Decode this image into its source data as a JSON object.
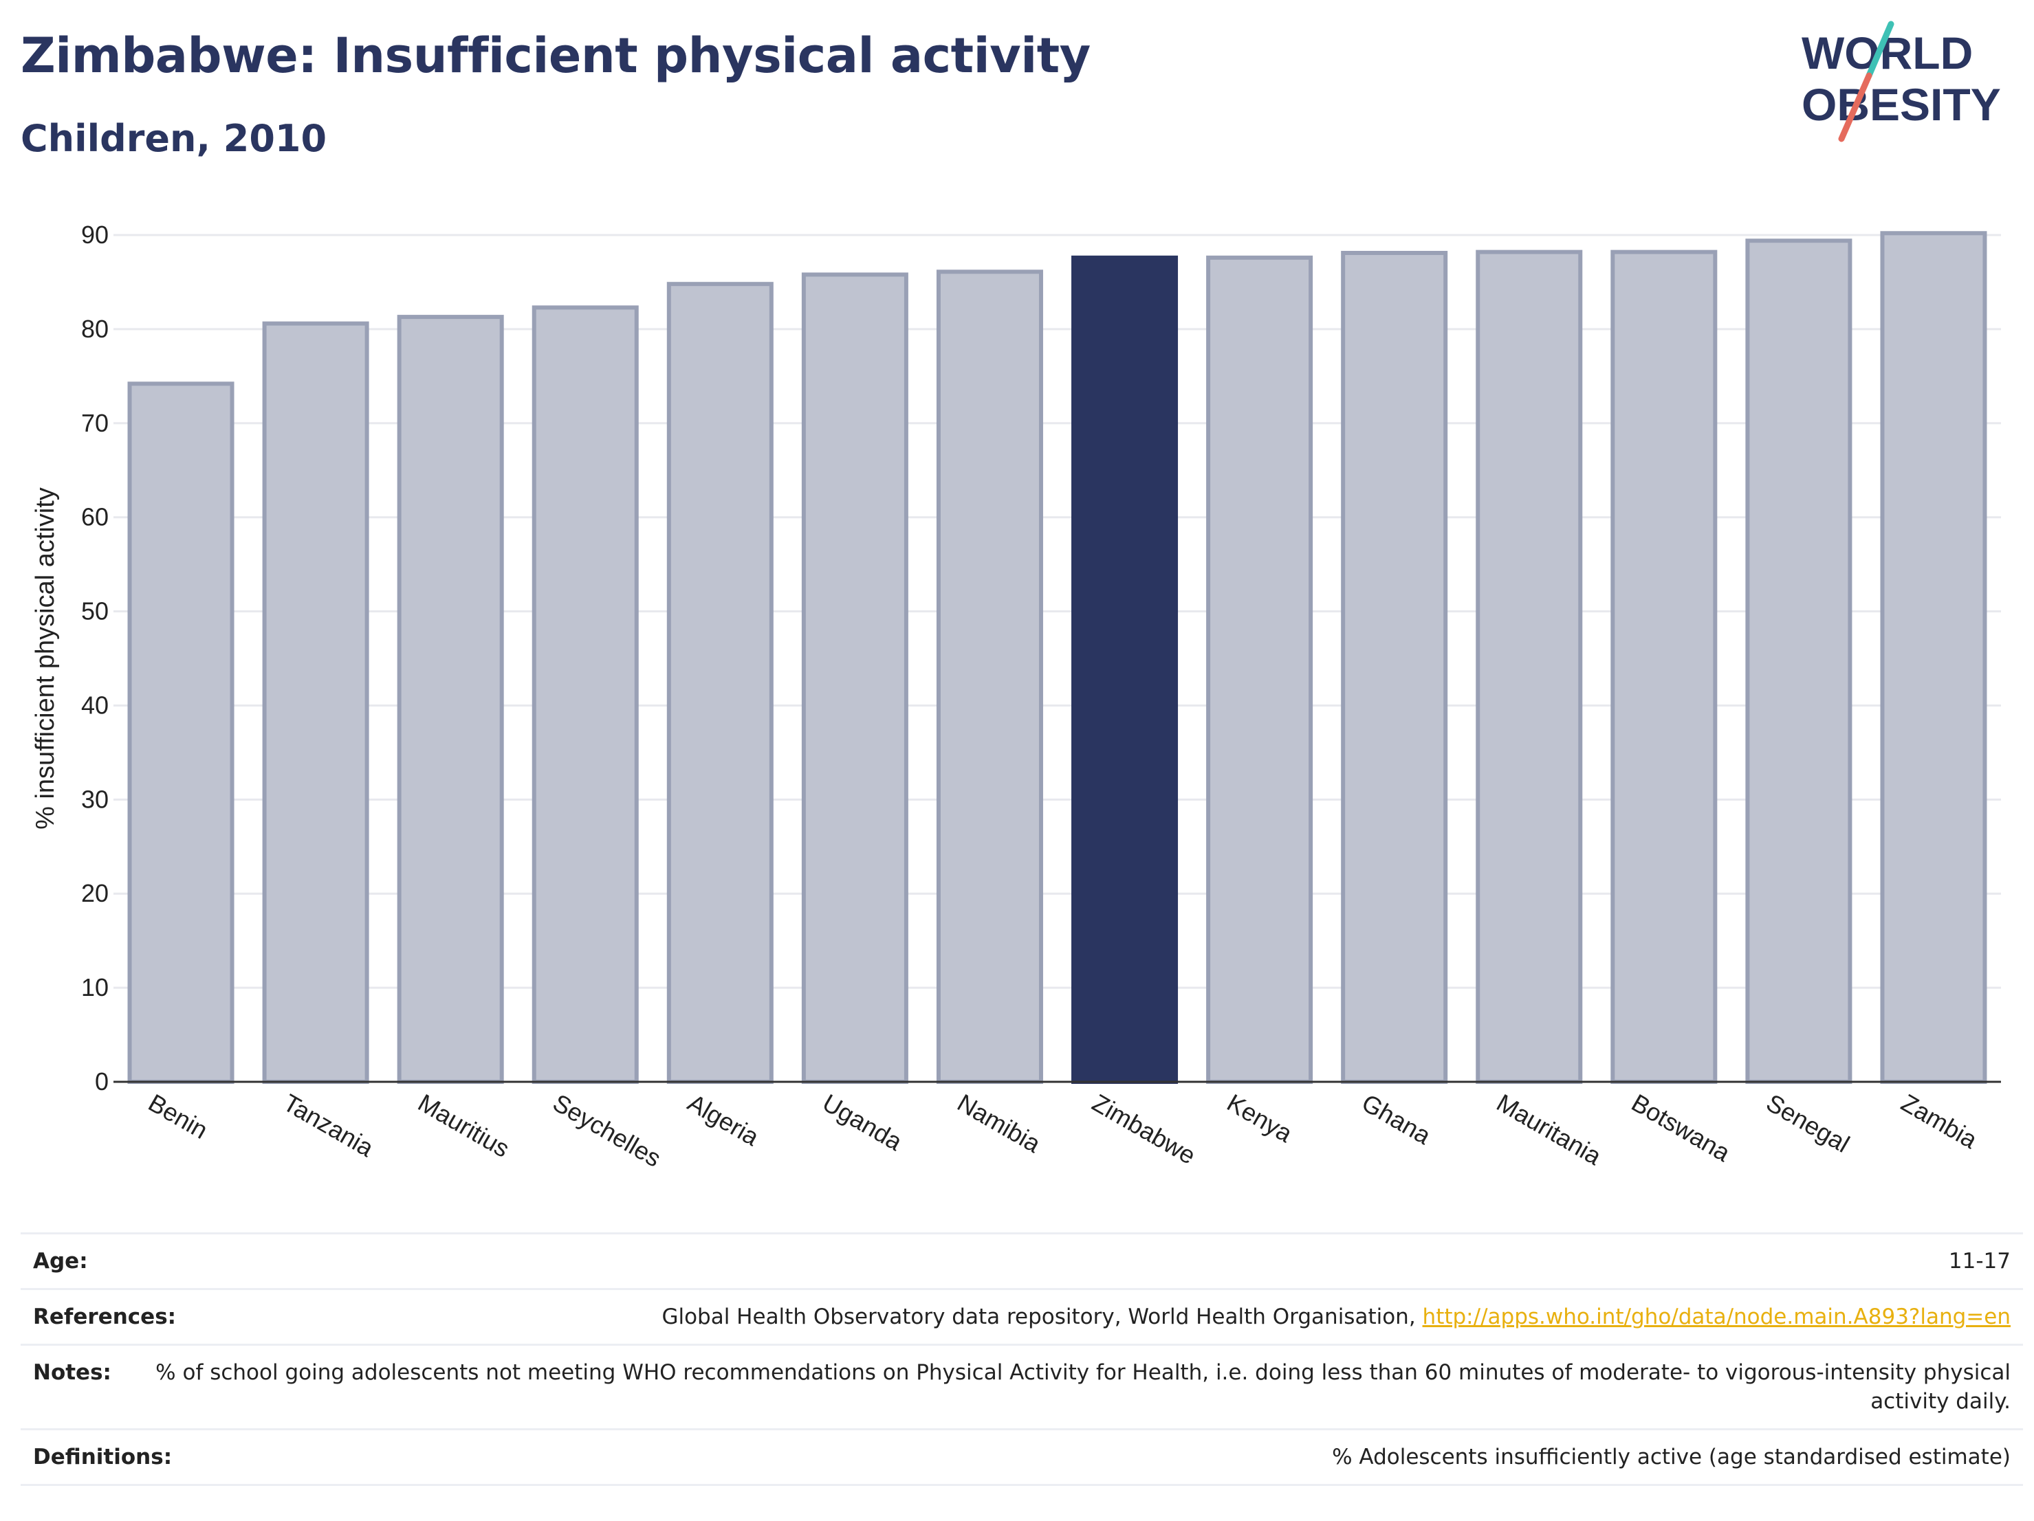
{
  "header": {
    "title": "Zimbabwe: Insufficient physical activity",
    "subtitle": "Children, 2010"
  },
  "logo": {
    "line1": "WORLD",
    "line2": "OBESITY",
    "text_color": "#2a3560",
    "slash_top_color": "#3ec1b5",
    "slash_bottom_color": "#e56b5d"
  },
  "colors": {
    "highlight_bar": "#2a3560",
    "other_bar_fill": "#bfc3d0",
    "other_bar_stroke": "#99a0b5",
    "grid": "#e8e9ee",
    "axis": "#333333"
  },
  "chart_data": {
    "type": "bar",
    "categories": [
      "Benin",
      "Tanzania",
      "Mauritius",
      "Seychelles",
      "Algeria",
      "Uganda",
      "Namibia",
      "Zimbabwe",
      "Kenya",
      "Ghana",
      "Mauritania",
      "Botswana",
      "Senegal",
      "Zambia"
    ],
    "values": [
      74.2,
      80.6,
      81.3,
      82.3,
      84.8,
      85.8,
      86.1,
      87.6,
      87.6,
      88.1,
      88.2,
      88.2,
      89.4,
      90.2
    ],
    "highlight": "Zimbabwe",
    "ylabel": "% insufficient physical activity",
    "xlabel": "",
    "ylim": [
      0,
      90
    ],
    "yticks": [
      0,
      10,
      20,
      30,
      40,
      50,
      60,
      70,
      80,
      90
    ],
    "grid": true,
    "legend": "none"
  },
  "meta": {
    "age_label": "Age:",
    "age_value": "11-17",
    "references_label": "References:",
    "references_text": "Global Health Observatory data repository, World Health Organisation, ",
    "references_link": "http://apps.who.int/gho/data/node.main.A893?lang=en",
    "notes_label": "Notes:",
    "notes_value": "% of school going adolescents not meeting WHO recommendations on Physical Activity for Health, i.e. doing less than 60 minutes of moderate- to vigorous-intensity physical activity daily.",
    "definitions_label": "Definitions:",
    "definitions_value": "% Adolescents insufficiently active (age standardised estimate)"
  }
}
